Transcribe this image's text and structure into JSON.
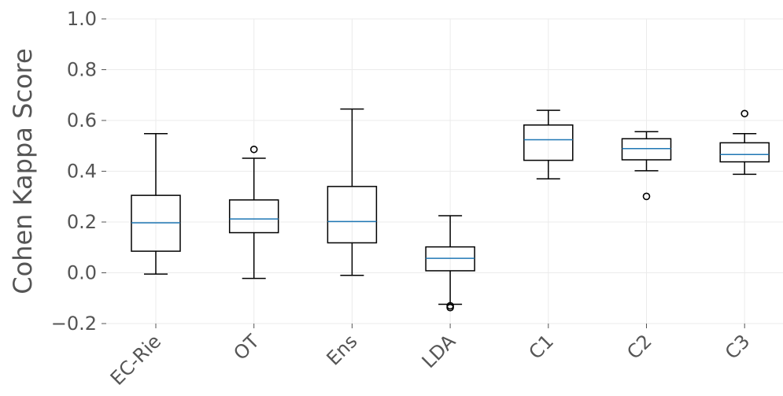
{
  "chart_data": {
    "type": "boxplot",
    "ylabel": "Cohen Kappa Score",
    "ylim": [
      -0.2,
      1.0
    ],
    "yticks": [
      -0.2,
      0.0,
      0.2,
      0.4,
      0.6,
      0.8,
      1.0
    ],
    "ytick_labels": [
      "−0.2",
      "0.0",
      "0.2",
      "0.4",
      "0.6",
      "0.8",
      "1.0"
    ],
    "grid": true,
    "categories": [
      "EC-Rie",
      "OT",
      "Ens",
      "LDA",
      "C1",
      "C2",
      "C3"
    ],
    "boxes": [
      {
        "label": "EC-Rie",
        "whisker_low": -0.005,
        "q1": 0.085,
        "median": 0.197,
        "q3": 0.305,
        "whisker_high": 0.548,
        "fliers": []
      },
      {
        "label": "OT",
        "whisker_low": -0.022,
        "q1": 0.158,
        "median": 0.212,
        "q3": 0.287,
        "whisker_high": 0.451,
        "fliers": [
          0.486
        ]
      },
      {
        "label": "Ens",
        "whisker_low": -0.01,
        "q1": 0.118,
        "median": 0.202,
        "q3": 0.34,
        "whisker_high": 0.645,
        "fliers": []
      },
      {
        "label": "LDA",
        "whisker_low": -0.124,
        "q1": 0.008,
        "median": 0.057,
        "q3": 0.102,
        "whisker_high": 0.225,
        "fliers": [
          -0.13,
          -0.137
        ]
      },
      {
        "label": "C1",
        "whisker_low": 0.37,
        "q1": 0.443,
        "median": 0.524,
        "q3": 0.582,
        "whisker_high": 0.64,
        "fliers": []
      },
      {
        "label": "C2",
        "whisker_low": 0.402,
        "q1": 0.445,
        "median": 0.489,
        "q3": 0.528,
        "whisker_high": 0.556,
        "fliers": [
          0.301
        ]
      },
      {
        "label": "C3",
        "whisker_low": 0.388,
        "q1": 0.437,
        "median": 0.466,
        "q3": 0.512,
        "whisker_high": 0.548,
        "fliers": [
          0.627
        ]
      }
    ]
  }
}
